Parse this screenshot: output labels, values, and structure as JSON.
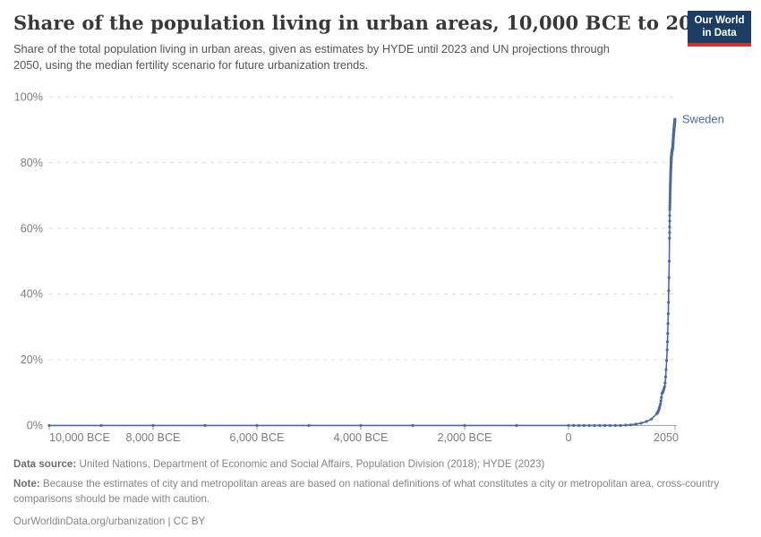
{
  "header": {
    "logo": {
      "line1": "Our World",
      "line2": "in Data"
    }
  },
  "chart_data": {
    "type": "line",
    "title": "Share of the population living in urban areas, 10,000 BCE to 2050",
    "subtitle": "Share of the total population living in urban areas, given as estimates by HYDE until 2023 and UN projections through 2050, using the median fertility scenario for future urbanization trends.",
    "xlabel": "",
    "ylabel": "",
    "xlim": [
      -10000,
      2050
    ],
    "ylim": [
      0,
      100
    ],
    "grid": "horizontal-dashed",
    "legend_position": "end-of-line-label",
    "x_ticks": [
      {
        "year": -10000,
        "label": "10,000 BCE",
        "align": "start"
      },
      {
        "year": -8000,
        "label": "8,000 BCE",
        "align": "middle"
      },
      {
        "year": -6000,
        "label": "6,000 BCE",
        "align": "middle"
      },
      {
        "year": -4000,
        "label": "4,000 BCE",
        "align": "middle"
      },
      {
        "year": -2000,
        "label": "2,000 BCE",
        "align": "middle"
      },
      {
        "year": 0,
        "label": "0",
        "align": "middle"
      },
      {
        "year": 2050,
        "label": "2050",
        "align": "end"
      }
    ],
    "y_ticks": [
      {
        "value": 0,
        "label": "0%"
      },
      {
        "value": 20,
        "label": "20%"
      },
      {
        "value": 40,
        "label": "40%"
      },
      {
        "value": 60,
        "label": "60%"
      },
      {
        "value": 80,
        "label": "80%"
      },
      {
        "value": 100,
        "label": "100%"
      }
    ],
    "colors": {
      "line": "#4c6a9c",
      "grid": "#dcdcdc",
      "axis": "#9e9e9e",
      "tick_label": "#7d7d7d"
    },
    "series": [
      {
        "name": "Sweden",
        "color": "#4c6a9c",
        "points": [
          [
            -10000,
            0
          ],
          [
            -9000,
            0
          ],
          [
            -8000,
            0
          ],
          [
            -7000,
            0
          ],
          [
            -6000,
            0
          ],
          [
            -5000,
            0
          ],
          [
            -4000,
            0
          ],
          [
            -3000,
            0
          ],
          [
            -2000,
            0
          ],
          [
            -1000,
            0
          ],
          [
            0,
            0
          ],
          [
            100,
            0
          ],
          [
            200,
            0
          ],
          [
            300,
            0
          ],
          [
            400,
            0
          ],
          [
            500,
            0
          ],
          [
            600,
            0
          ],
          [
            700,
            0
          ],
          [
            800,
            0
          ],
          [
            900,
            0
          ],
          [
            1000,
            0
          ],
          [
            1100,
            0.1
          ],
          [
            1200,
            0.2
          ],
          [
            1300,
            0.4
          ],
          [
            1400,
            0.7
          ],
          [
            1500,
            1.2
          ],
          [
            1600,
            2
          ],
          [
            1700,
            3.6
          ],
          [
            1710,
            3.8
          ],
          [
            1720,
            4.1
          ],
          [
            1730,
            4.4
          ],
          [
            1740,
            4.8
          ],
          [
            1750,
            5.3
          ],
          [
            1760,
            5.9
          ],
          [
            1770,
            6.6
          ],
          [
            1780,
            7.5
          ],
          [
            1790,
            8.5
          ],
          [
            1800,
            9.8
          ],
          [
            1810,
            10
          ],
          [
            1820,
            10.3
          ],
          [
            1830,
            10.7
          ],
          [
            1840,
            11.2
          ],
          [
            1850,
            11.8
          ],
          [
            1860,
            13
          ],
          [
            1870,
            14.8
          ],
          [
            1880,
            17
          ],
          [
            1890,
            19.8
          ],
          [
            1900,
            23
          ],
          [
            1905,
            25.5
          ],
          [
            1910,
            28
          ],
          [
            1915,
            31
          ],
          [
            1920,
            34
          ],
          [
            1925,
            37.5
          ],
          [
            1930,
            41
          ],
          [
            1935,
            45
          ],
          [
            1940,
            50
          ],
          [
            1945,
            57
          ],
          [
            1946,
            58.7
          ],
          [
            1947,
            60.4
          ],
          [
            1948,
            62.2
          ],
          [
            1949,
            63.9
          ],
          [
            1950,
            65.7
          ],
          [
            1951,
            66.4
          ],
          [
            1952,
            67
          ],
          [
            1953,
            67.7
          ],
          [
            1954,
            68.3
          ],
          [
            1955,
            69
          ],
          [
            1956,
            69.7
          ],
          [
            1957,
            70.4
          ],
          [
            1958,
            71.1
          ],
          [
            1959,
            71.8
          ],
          [
            1960,
            72.5
          ],
          [
            1961,
            73.1
          ],
          [
            1962,
            73.7
          ],
          [
            1963,
            74.2
          ],
          [
            1964,
            74.8
          ],
          [
            1965,
            75.4
          ],
          [
            1966,
            75.9
          ],
          [
            1967,
            76.4
          ],
          [
            1968,
            77
          ],
          [
            1969,
            77.5
          ],
          [
            1970,
            78
          ],
          [
            1971,
            78.4
          ],
          [
            1972,
            78.8
          ],
          [
            1973,
            79.2
          ],
          [
            1974,
            79.6
          ],
          [
            1975,
            80
          ],
          [
            1976,
            80.3
          ],
          [
            1977,
            80.6
          ],
          [
            1978,
            80.9
          ],
          [
            1979,
            81.2
          ],
          [
            1980,
            81.5
          ],
          [
            1981,
            81.7
          ],
          [
            1982,
            81.9
          ],
          [
            1983,
            82.1
          ],
          [
            1984,
            82.3
          ],
          [
            1985,
            82.5
          ],
          [
            1986,
            82.6
          ],
          [
            1987,
            82.7
          ],
          [
            1988,
            82.9
          ],
          [
            1989,
            83
          ],
          [
            1990,
            83.1
          ],
          [
            1991,
            83.2
          ],
          [
            1992,
            83.3
          ],
          [
            1993,
            83.4
          ],
          [
            1994,
            83.5
          ],
          [
            1995,
            83.6
          ],
          [
            1996,
            83.7
          ],
          [
            1997,
            83.8
          ],
          [
            1998,
            83.8
          ],
          [
            1999,
            83.9
          ],
          [
            2000,
            84
          ],
          [
            2001,
            84.1
          ],
          [
            2002,
            84.2
          ],
          [
            2003,
            84.2
          ],
          [
            2004,
            84.3
          ],
          [
            2005,
            84.4
          ],
          [
            2006,
            84.5
          ],
          [
            2007,
            84.7
          ],
          [
            2008,
            84.8
          ],
          [
            2009,
            85
          ],
          [
            2010,
            85.1
          ],
          [
            2011,
            85.4
          ],
          [
            2012,
            85.7
          ],
          [
            2013,
            86
          ],
          [
            2014,
            86.3
          ],
          [
            2015,
            86.6
          ],
          [
            2016,
            86.9
          ],
          [
            2017,
            87.2
          ],
          [
            2018,
            87.4
          ],
          [
            2019,
            87.7
          ],
          [
            2020,
            88
          ],
          [
            2021,
            88.2
          ],
          [
            2022,
            88.5
          ],
          [
            2023,
            88.7
          ],
          [
            2024,
            88.9
          ],
          [
            2025,
            89
          ],
          [
            2026,
            89.2
          ],
          [
            2027,
            89.4
          ],
          [
            2028,
            89.5
          ],
          [
            2029,
            89.7
          ],
          [
            2030,
            89.9
          ],
          [
            2031,
            90
          ],
          [
            2032,
            90.2
          ],
          [
            2033,
            90.4
          ],
          [
            2034,
            90.5
          ],
          [
            2035,
            90.7
          ],
          [
            2036,
            90.9
          ],
          [
            2037,
            91
          ],
          [
            2038,
            91.2
          ],
          [
            2039,
            91.4
          ],
          [
            2040,
            91.5
          ],
          [
            2041,
            91.7
          ],
          [
            2042,
            91.9
          ],
          [
            2043,
            92
          ],
          [
            2044,
            92.2
          ],
          [
            2045,
            92.4
          ],
          [
            2046,
            92.5
          ],
          [
            2047,
            92.7
          ],
          [
            2048,
            92.9
          ],
          [
            2049,
            93
          ],
          [
            2050,
            93.2
          ]
        ]
      }
    ]
  },
  "footer": {
    "datasource_label": "Data source:",
    "datasource": "United Nations, Department of Economic and Social Affairs, Population Division (2018); HYDE (2023)",
    "note_label": "Note:",
    "note": "Because the estimates of city and metropolitan areas are based on national definitions of what constitutes a city or metropolitan area, cross-country comparisons should be made with caution.",
    "license": "OurWorldinData.org/urbanization | CC BY"
  }
}
